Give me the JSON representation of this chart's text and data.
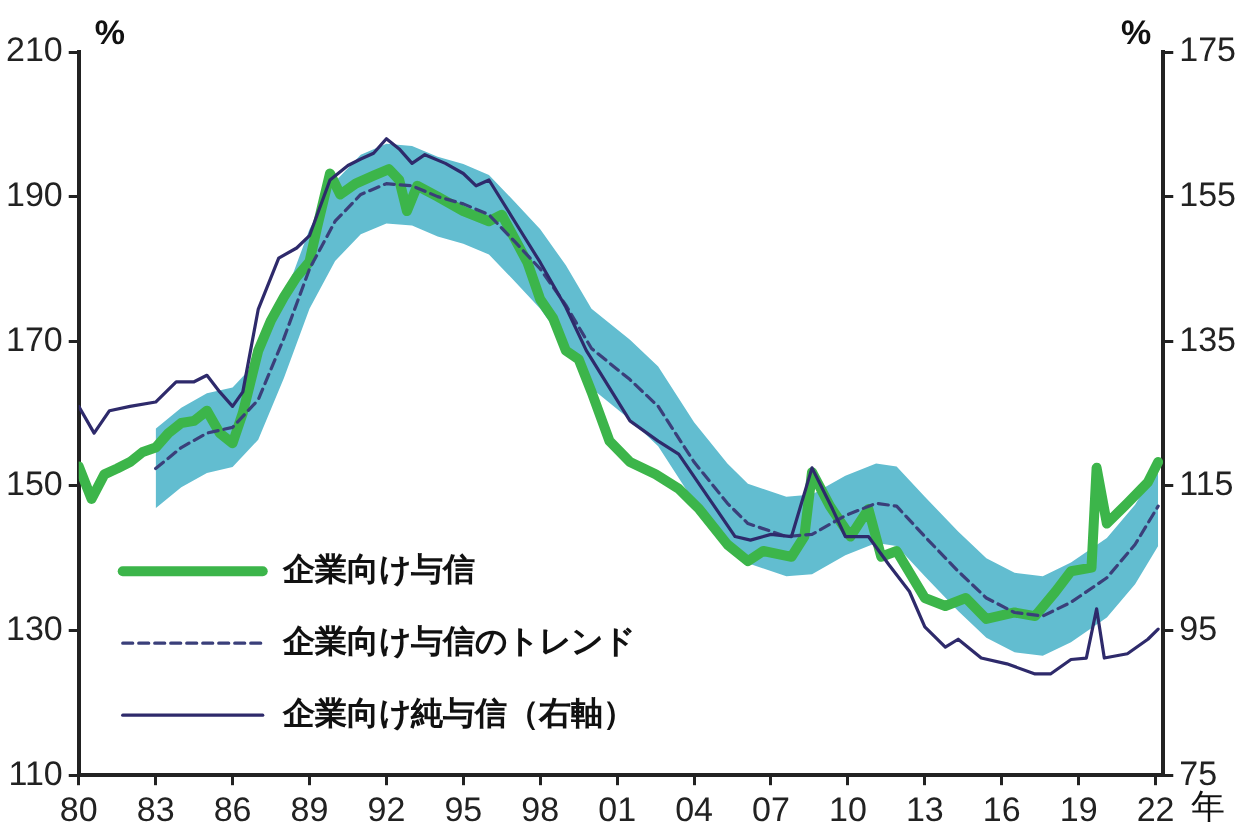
{
  "chart_data": {
    "type": "line",
    "xlabel": "年",
    "ylabel": "%",
    "y2label": "%",
    "xlim": [
      1980,
      2022.3
    ],
    "xticks": [
      {
        "value": 1980,
        "label": "80"
      },
      {
        "value": 1983,
        "label": "83"
      },
      {
        "value": 1986,
        "label": "86"
      },
      {
        "value": 1989,
        "label": "89"
      },
      {
        "value": 1992,
        "label": "92"
      },
      {
        "value": 1995,
        "label": "95"
      },
      {
        "value": 1998,
        "label": "98"
      },
      {
        "value": 2001,
        "label": "01"
      },
      {
        "value": 2004,
        "label": "04"
      },
      {
        "value": 2007,
        "label": "07"
      },
      {
        "value": 2010,
        "label": "10"
      },
      {
        "value": 2013,
        "label": "13"
      },
      {
        "value": 2016,
        "label": "16"
      },
      {
        "value": 2019,
        "label": "19"
      },
      {
        "value": 2022,
        "label": "22"
      }
    ],
    "ylim": [
      110,
      210
    ],
    "yticks": [
      110,
      130,
      150,
      170,
      190,
      210
    ],
    "y2lim": [
      75,
      175
    ],
    "y2ticks": [
      75,
      95,
      115,
      135,
      155,
      175
    ],
    "grid": false,
    "legend": "bottom left",
    "marker": "none",
    "series": [
      {
        "name": "企業向け与信",
        "color": "#3cb54a",
        "line_style": "solid",
        "x": [
          1980,
          1980.5,
          1981,
          1981.5,
          1982,
          1982.5,
          1983,
          1983.5,
          1984,
          1984.5,
          1985,
          1985.5,
          1986,
          1986.4,
          1987,
          1987.5,
          1988,
          1988.5,
          1989,
          1989.3,
          1989.8,
          1990.2,
          1990.8,
          1991.5,
          1992.1,
          1992.5,
          1992.8,
          1993.2,
          1994,
          1995,
          1996,
          1996.5,
          1997.5,
          1998,
          1998.5,
          1999,
          1999.5,
          2000,
          2000.7,
          2001.5,
          2002.5,
          2003.4,
          2004.2,
          2005.3,
          2006.1,
          2006.7,
          2007.8,
          2008.3,
          2008.6,
          2009.3,
          2010.1,
          2010.8,
          2011.3,
          2011.9,
          2013,
          2013.8,
          2014.6,
          2015.4,
          2016.5,
          2017.3,
          2018.1,
          2018.7,
          2019.5,
          2019.7,
          2020.1,
          2020.9,
          2021.7,
          2022.1
        ],
        "values": [
          152.7,
          148.2,
          151.6,
          152.4,
          153.3,
          154.7,
          155.3,
          157.3,
          158.7,
          159,
          160.4,
          157.3,
          155.9,
          160.1,
          168.7,
          172.9,
          176.1,
          178.9,
          181,
          185.8,
          193.2,
          190.3,
          191.8,
          192.9,
          193.8,
          192.3,
          188,
          191.5,
          190,
          188,
          186.6,
          187.5,
          180.9,
          175.8,
          173.2,
          168.7,
          167.5,
          163,
          156.2,
          153.3,
          151.6,
          149.6,
          146.8,
          141.9,
          139.6,
          141,
          140.2,
          143,
          151.9,
          147.2,
          143,
          146.8,
          140.2,
          141,
          134.5,
          133.4,
          134.5,
          131.6,
          132.5,
          132,
          135.4,
          138.2,
          138.7,
          152.5,
          144.8,
          147.6,
          150.5,
          153.3
        ]
      },
      {
        "name": "企業向け与信のトレンド",
        "color": "#3a3f7a",
        "line_style": "dashed",
        "x": [
          1983,
          1984,
          1985,
          1986,
          1987,
          1988,
          1989,
          1990,
          1991,
          1992,
          1993,
          1994,
          1995,
          1996,
          1997,
          1998,
          1999,
          2000,
          2001.5,
          2002.6,
          2004,
          2005.3,
          2006.1,
          2007.6,
          2008.6,
          2009.9,
          2011.1,
          2011.9,
          2013,
          2014.3,
          2015.4,
          2016.5,
          2017.6,
          2018.7,
          2020.1,
          2021.2,
          2022.1
        ],
        "values": [
          152.4,
          155.3,
          157.3,
          158.1,
          161.9,
          170.4,
          180,
          186.6,
          190.3,
          191.8,
          191.5,
          190,
          189,
          187.5,
          183.8,
          180,
          175,
          169,
          164.7,
          161,
          153.3,
          147.6,
          144.8,
          143,
          143.3,
          145.9,
          147.6,
          147.2,
          143,
          138.2,
          134.5,
          132.5,
          132,
          133.9,
          137.3,
          141.9,
          147.2
        ],
        "lower": [
          146.9,
          149.8,
          151.8,
          152.6,
          156.4,
          164.9,
          174.5,
          181.1,
          184.8,
          186.3,
          186,
          184.5,
          183.5,
          182,
          178.3,
          174.5,
          169.5,
          163.5,
          159.2,
          155.5,
          147.8,
          142.1,
          139.3,
          137.5,
          137.8,
          140.4,
          142.1,
          141.7,
          137.5,
          132.7,
          129,
          127,
          126.5,
          128.4,
          131.8,
          136.4,
          141.7
        ],
        "upper": [
          157.9,
          160.8,
          162.8,
          163.6,
          167.4,
          175.9,
          185.5,
          192.1,
          195.8,
          197.3,
          197,
          195.5,
          194.5,
          193,
          189.3,
          185.5,
          180.5,
          174.5,
          170.2,
          166.5,
          158.8,
          153.1,
          150.3,
          148.5,
          148.8,
          151.4,
          153.1,
          152.7,
          148.5,
          143.7,
          140,
          138,
          137.5,
          139.4,
          142.8,
          147.4,
          152.7
        ]
      },
      {
        "name": "企業向け純与信（右軸）",
        "color": "#2e2a6b",
        "line_style": "solid",
        "axis": "y2",
        "x": [
          1980,
          1980.6,
          1981.2,
          1982,
          1983,
          1983.8,
          1984.5,
          1985,
          1985.5,
          1986,
          1986.4,
          1987,
          1987.8,
          1988.5,
          1989,
          1989.3,
          1989.8,
          1990.5,
          1991,
          1991.5,
          1992,
          1992.5,
          1993,
          1993.5,
          1994.3,
          1995,
          1995.5,
          1996,
          1997,
          1998,
          1999,
          1999.8,
          2001.5,
          2002.6,
          2003.4,
          2004.5,
          2005.6,
          2006.2,
          2007,
          2007.8,
          2008.6,
          2009.4,
          2009.9,
          2010.8,
          2011.6,
          2012.4,
          2013,
          2013.8,
          2014.3,
          2015.2,
          2016.2,
          2017.3,
          2017.9,
          2018.7,
          2019.3,
          2019.7,
          2020,
          2020.9,
          2021.7,
          2022.1
        ],
        "values": [
          126,
          122.3,
          125.4,
          126,
          126.6,
          129.4,
          129.4,
          130.3,
          128,
          126,
          128,
          139.4,
          146.5,
          147.9,
          149.6,
          152.5,
          157.3,
          159.3,
          160.2,
          161,
          163,
          161.6,
          159.6,
          160.8,
          159.6,
          158.2,
          156.5,
          157.3,
          151.6,
          145.9,
          139.7,
          133.7,
          124,
          121.2,
          119.4,
          113.7,
          108,
          107.5,
          108.3,
          108,
          117.5,
          111.8,
          108,
          108,
          104.1,
          100.4,
          95.5,
          92.7,
          93.8,
          91.2,
          90.4,
          89,
          89,
          91,
          91.2,
          98,
          91.2,
          91.8,
          93.8,
          95.2
        ]
      }
    ]
  }
}
